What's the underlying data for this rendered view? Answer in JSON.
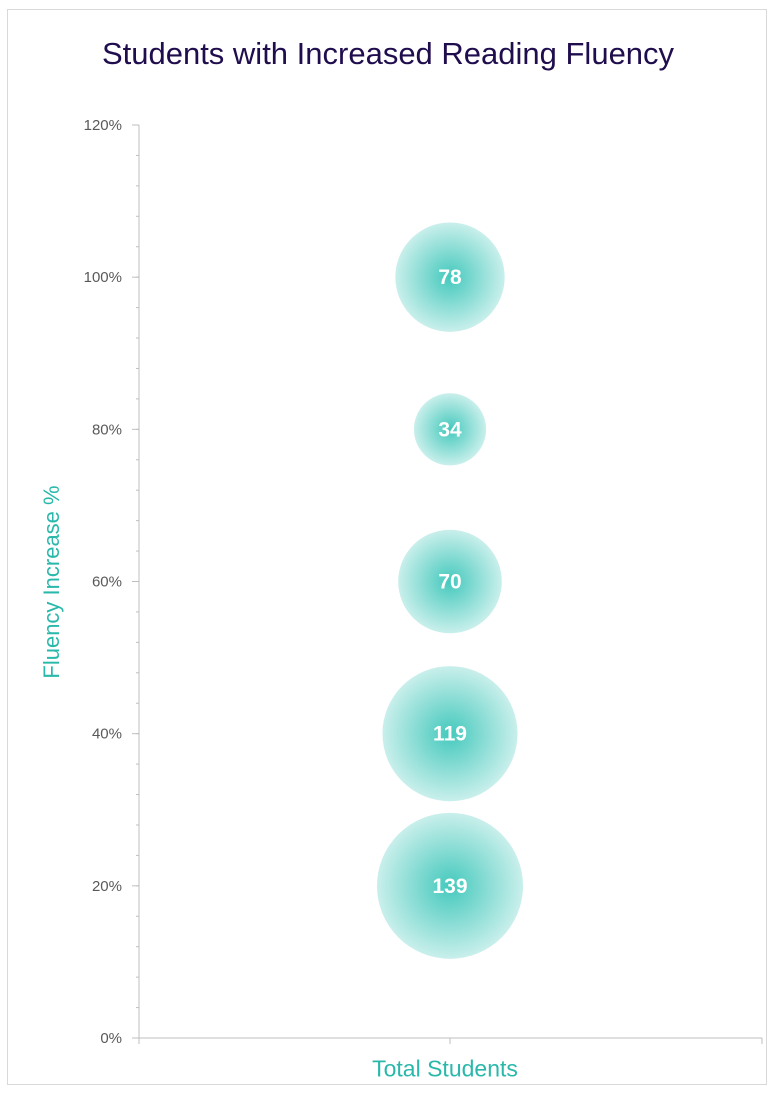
{
  "chart_data": {
    "type": "bubble",
    "title": "Students with Increased Reading Fluency",
    "xlabel": "Total Students",
    "ylabel": "Fluency Increase %",
    "ylim": [
      0,
      120
    ],
    "ytick_step": 20,
    "y_minor_step": 4,
    "ytick_labels": [
      "0%",
      "20%",
      "40%",
      "60%",
      "80%",
      "100%",
      "120%"
    ],
    "grid": false,
    "legend": "none",
    "colors": {
      "bubble": "#45c9bd",
      "bubble_light": "#c9efeb",
      "axis_title": "#2ab8ab",
      "title": "#1f0d4d",
      "axis": "#bfbfbf"
    },
    "points": [
      {
        "y": 100,
        "size": 78,
        "label": "78"
      },
      {
        "y": 80,
        "size": 34,
        "label": "34"
      },
      {
        "y": 60,
        "size": 70,
        "label": "70"
      },
      {
        "y": 40,
        "size": 119,
        "label": "119"
      },
      {
        "y": 20,
        "size": 139,
        "label": "139"
      }
    ]
  }
}
